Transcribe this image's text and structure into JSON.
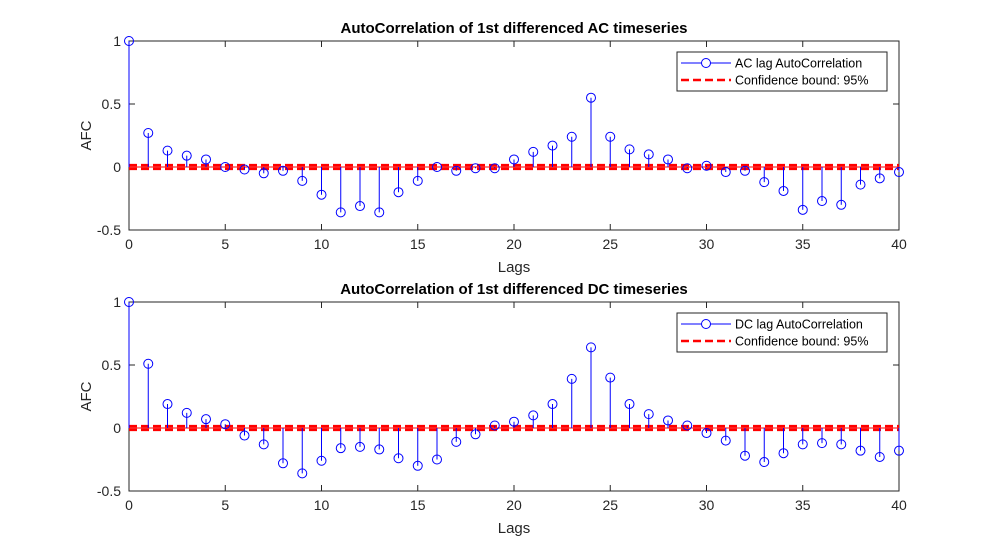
{
  "chart_data": [
    {
      "type": "stem",
      "title": "AutoCorrelation of 1st differenced AC timeseries",
      "xlabel": "Lags",
      "ylabel": "AFC",
      "xlim": [
        0,
        40
      ],
      "ylim": [
        -0.5,
        1
      ],
      "xticks": [
        "0",
        "5",
        "10",
        "15",
        "20",
        "25",
        "30",
        "35",
        "40"
      ],
      "yticks": [
        "-0.5",
        "0",
        "0.5",
        "1"
      ],
      "legend_placement": "top-right",
      "series": [
        {
          "name": "AC lag AutoCorrelation",
          "color": "#0000ff",
          "marker": "open-circle",
          "x": [
            0,
            1,
            2,
            3,
            4,
            5,
            6,
            7,
            8,
            9,
            10,
            11,
            12,
            13,
            14,
            15,
            16,
            17,
            18,
            19,
            20,
            21,
            22,
            23,
            24,
            25,
            26,
            27,
            28,
            29,
            30,
            31,
            32,
            33,
            34,
            35,
            36,
            37,
            38,
            39,
            40
          ],
          "values": [
            1.0,
            0.27,
            0.13,
            0.09,
            0.06,
            0.0,
            -0.02,
            -0.05,
            -0.03,
            -0.11,
            -0.22,
            -0.36,
            -0.31,
            -0.36,
            -0.2,
            -0.11,
            0.0,
            -0.03,
            -0.01,
            -0.01,
            0.06,
            0.12,
            0.17,
            0.24,
            0.55,
            0.24,
            0.14,
            0.1,
            0.06,
            -0.01,
            0.01,
            -0.04,
            -0.03,
            -0.12,
            -0.19,
            -0.34,
            -0.27,
            -0.3,
            -0.14,
            -0.09,
            -0.04
          ]
        }
      ],
      "confidence": {
        "name": "Confidence bound: 95%",
        "color": "#ff0000",
        "upper": 0.015,
        "lower": -0.015
      }
    },
    {
      "type": "stem",
      "title": "AutoCorrelation of 1st differenced DC timeseries",
      "xlabel": "Lags",
      "ylabel": "AFC",
      "xlim": [
        0,
        40
      ],
      "ylim": [
        -0.5,
        1
      ],
      "xticks": [
        "0",
        "5",
        "10",
        "15",
        "20",
        "25",
        "30",
        "35",
        "40"
      ],
      "yticks": [
        "-0.5",
        "0",
        "0.5",
        "1"
      ],
      "legend_placement": "top-right",
      "series": [
        {
          "name": "DC lag AutoCorrelation",
          "color": "#0000ff",
          "marker": "open-circle",
          "x": [
            0,
            1,
            2,
            3,
            4,
            5,
            6,
            7,
            8,
            9,
            10,
            11,
            12,
            13,
            14,
            15,
            16,
            17,
            18,
            19,
            20,
            21,
            22,
            23,
            24,
            25,
            26,
            27,
            28,
            29,
            30,
            31,
            32,
            33,
            34,
            35,
            36,
            37,
            38,
            39,
            40
          ],
          "values": [
            1.0,
            0.51,
            0.19,
            0.12,
            0.07,
            0.03,
            -0.06,
            -0.13,
            -0.28,
            -0.36,
            -0.26,
            -0.16,
            -0.15,
            -0.17,
            -0.24,
            -0.3,
            -0.25,
            -0.11,
            -0.05,
            0.02,
            0.05,
            0.1,
            0.19,
            0.39,
            0.64,
            0.4,
            0.19,
            0.11,
            0.06,
            0.02,
            -0.04,
            -0.1,
            -0.22,
            -0.27,
            -0.2,
            -0.13,
            -0.12,
            -0.13,
            -0.18,
            -0.23,
            -0.18
          ]
        }
      ],
      "confidence": {
        "name": "Confidence bound: 95%",
        "color": "#ff0000",
        "upper": 0.015,
        "lower": -0.015
      }
    }
  ]
}
